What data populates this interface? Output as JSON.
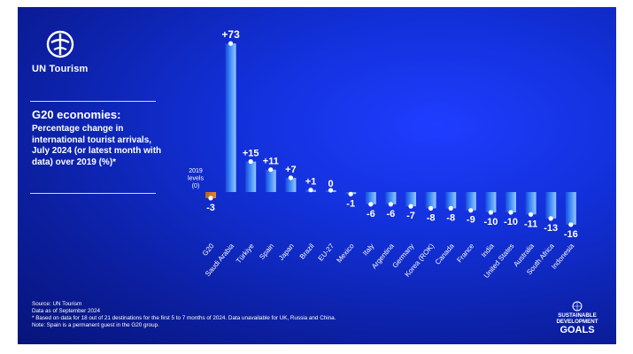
{
  "brand": {
    "name": "UN Tourism"
  },
  "chart_data": {
    "type": "bar",
    "title": "G20 economies:",
    "subtitle": "Percentage change in international tourist arrivals, July 2024 (or latest month with data) over 2019 (%)*",
    "baseline_label": [
      "2019",
      "levels",
      "(0)"
    ],
    "categories": [
      "G20",
      "Saudi Arabia",
      "Türkiye",
      "Spain",
      "Japan",
      "Brazil",
      "EU-27",
      "Mexico",
      "Italy",
      "Argentina",
      "Germany",
      "Korea (ROK)",
      "Canada",
      "France",
      "India",
      "United States",
      "Australia",
      "South Africa",
      "Indonesia"
    ],
    "values": [
      -3,
      73,
      15,
      11,
      7,
      1,
      0,
      -1,
      -6,
      -6,
      -7,
      -8,
      -8,
      -9,
      -10,
      -10,
      -11,
      -13,
      -16
    ],
    "value_labels": [
      "-3",
      "+73",
      "+15",
      "+11",
      "+7",
      "+1",
      "0",
      "-1",
      "-6",
      "-6",
      "-7",
      "-8",
      "-8",
      "-9",
      "-10",
      "-10",
      "-11",
      "-13",
      "-16"
    ],
    "colors": {
      "g20": "#e08a3a",
      "bars": "#3f8eff",
      "highlight": "#9fd0ff",
      "background": "#1230d8"
    }
  },
  "footer": {
    "source": "Source: UN Tourism",
    "date": "Data as of September 2024",
    "note1": "* Based on data for 18 out of 21 destinations for the first 5 to 7 months of 2024. Data unavailable for UK, Russia and China.",
    "note2": "Note: Spain is a permanent guest in the G20 group."
  },
  "sdg": {
    "line1": "SUSTAINABLE",
    "line2": "DEVELOPMENT",
    "line3": "GOALS"
  }
}
